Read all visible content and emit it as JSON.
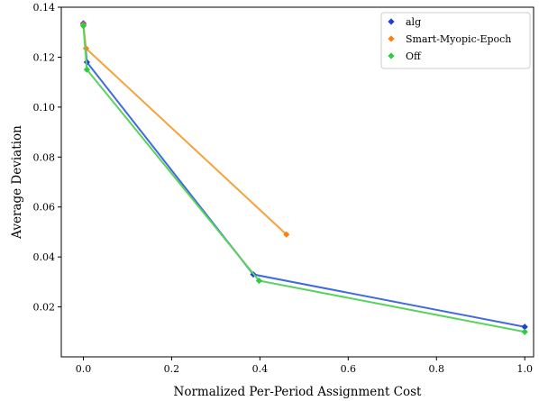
{
  "chart_data": {
    "type": "line",
    "title": "",
    "xlabel": "Normalized Per-Period Assignment Cost",
    "ylabel": "Average Deviation",
    "xlim": [
      -0.05,
      1.02
    ],
    "ylim": [
      0.0,
      0.14
    ],
    "x_ticks": [
      "0.0",
      "0.2",
      "0.4",
      "0.6",
      "0.8",
      "1.0"
    ],
    "y_ticks": [
      "0.02",
      "0.04",
      "0.06",
      "0.08",
      "0.10",
      "0.12",
      "0.14"
    ],
    "grid": false,
    "legend_position": "top-right",
    "series": [
      {
        "name": "alg",
        "color": "#4169e1",
        "marker_color": "#1f3fd8",
        "points": [
          [
            0.0,
            0.1335
          ],
          [
            0.008,
            0.118
          ],
          [
            0.385,
            0.033
          ],
          [
            1.0,
            0.012
          ]
        ]
      },
      {
        "name": "Smart-Myopic-Epoch",
        "color": "#f5a33b",
        "marker_color": "#ff7f0e",
        "points": [
          [
            0.0,
            0.133
          ],
          [
            0.006,
            0.1235
          ],
          [
            0.46,
            0.049
          ]
        ]
      },
      {
        "name": "Off",
        "color": "#5ad35a",
        "marker_color": "#2ecc40",
        "points": [
          [
            0.0,
            0.1325
          ],
          [
            0.008,
            0.115
          ],
          [
            0.398,
            0.0305
          ],
          [
            1.0,
            0.01
          ]
        ]
      }
    ]
  }
}
